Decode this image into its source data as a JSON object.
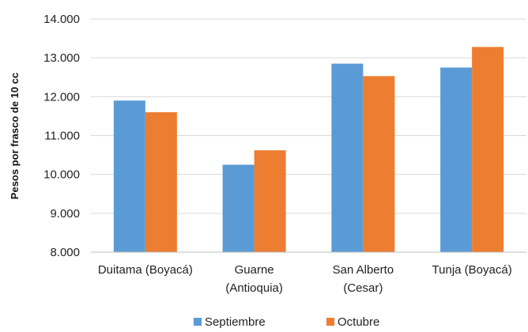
{
  "chart_data": {
    "type": "bar",
    "title": "",
    "xlabel": "",
    "ylabel": "Pesos por frasco de 10 cc",
    "categories": [
      [
        "Duitama (Boyacá)"
      ],
      [
        "Guarne",
        "(Antioquia)"
      ],
      [
        "San Alberto",
        "(Cesar)"
      ],
      [
        "Tunja (Boyacá)"
      ]
    ],
    "series": [
      {
        "name": "Septiembre",
        "color": "#5B9BD5",
        "values": [
          11900,
          10250,
          12850,
          12750
        ]
      },
      {
        "name": "Octubre",
        "color": "#ED7D31",
        "values": [
          11600,
          10620,
          12530,
          13280
        ]
      }
    ],
    "ylim": [
      8000,
      14000
    ],
    "yticks": [
      8000,
      9000,
      10000,
      11000,
      12000,
      13000,
      14000
    ],
    "ytick_labels": [
      "8.000",
      "9.000",
      "10.000",
      "11.000",
      "12.000",
      "13.000",
      "14.000"
    ],
    "grid": true,
    "legend_position": "bottom"
  }
}
